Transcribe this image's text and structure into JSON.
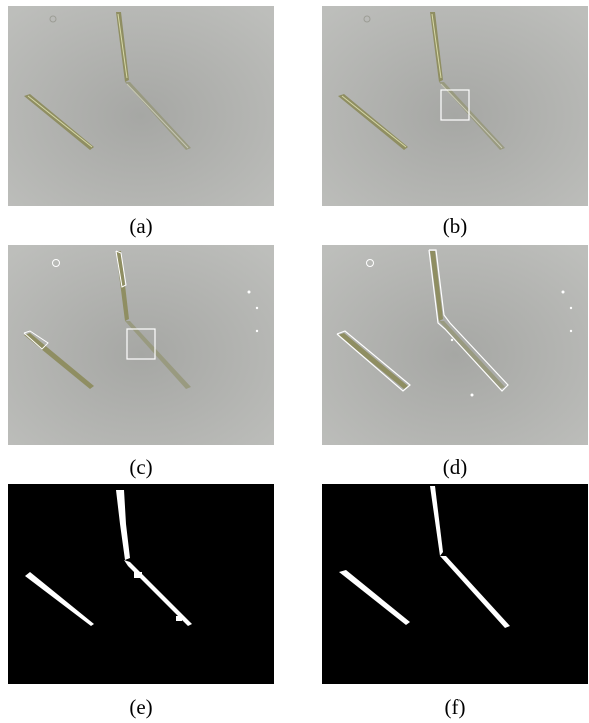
{
  "figure": {
    "panels": [
      {
        "id": "a",
        "caption": "(a)",
        "kind": "micrograph",
        "overlay": "none"
      },
      {
        "id": "b",
        "caption": "(b)",
        "kind": "micrograph",
        "overlay": "roi-box"
      },
      {
        "id": "c",
        "caption": "(c)",
        "kind": "micrograph",
        "overlay": "roi-box-with-partial-contours"
      },
      {
        "id": "d",
        "caption": "(d)",
        "kind": "micrograph",
        "overlay": "full-contours"
      },
      {
        "id": "e",
        "caption": "(e)",
        "kind": "binary-mask",
        "overlay": "rough-segmentation"
      },
      {
        "id": "f",
        "caption": "(f)",
        "kind": "binary-mask",
        "overlay": "smooth-segmentation"
      }
    ]
  },
  "colors": {
    "micrograph_background": "#b6b7b4",
    "micrograph_center": "#a6a7a4",
    "fiber": "#8f8e62",
    "fiber_highlight": "#d6d8a6",
    "contour": "#ffffff",
    "mask_background": "#000000",
    "mask_foreground": "#ffffff"
  }
}
